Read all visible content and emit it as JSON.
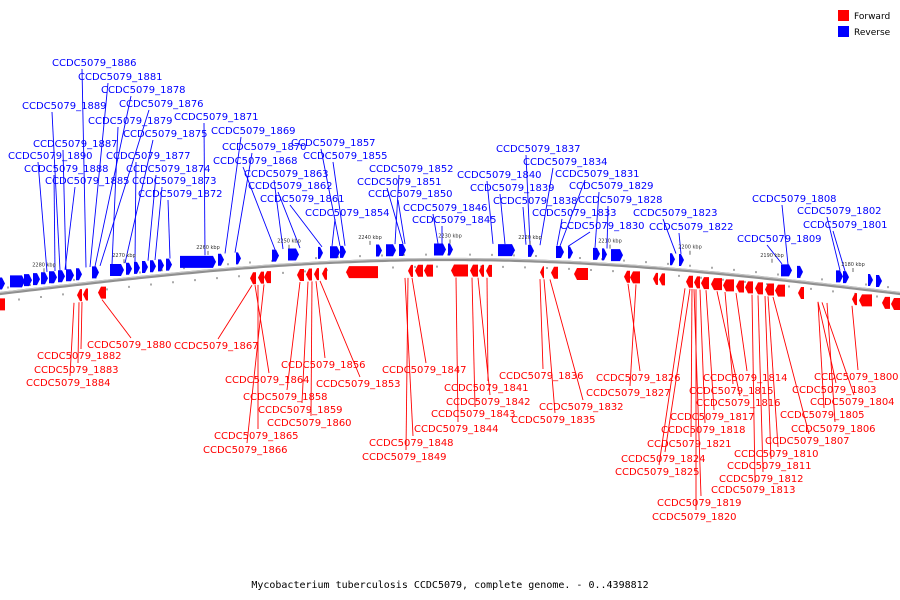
{
  "caption": "Mycobacterium tuberculosis CCDC5079, complete genome. - 0..4398812",
  "legend": [
    {
      "label": "Forward",
      "color": "#ff0000"
    },
    {
      "label": "Reverse",
      "color": "#0000ff"
    }
  ],
  "colors": {
    "forward": "#ff0000",
    "reverse": "#0000ff",
    "backbone": "#808080"
  },
  "ticks": [
    "2280 kbp",
    "2270 kbp",
    "2260 kbp",
    "2250 kbp",
    "2240 kbp",
    "2230 kbp",
    "2220 kbp",
    "2210 kbp",
    "2200 kbp",
    "2190 kbp",
    "2180 kbp"
  ],
  "reverse_labels": [
    "CCDC5079_1886",
    "CCDC5079_1881",
    "CCDC5079_1878",
    "CCDC5079_1889",
    "CCDC5079_1876",
    "CCDC5079_1879",
    "CCDC5079_1871",
    "CCDC5079_1875",
    "CCDC5079_1869",
    "CCDC5079_1887",
    "CCDC5079_1870",
    "CCDC5079_1857",
    "CCDC5079_1890",
    "CCDC5079_1877",
    "CCDC5079_1868",
    "CCDC5079_1855",
    "CCDC5079_1888",
    "CCDC5079_1874",
    "CCDC5079_1863",
    "CCDC5079_1852",
    "CCDC5079_1885",
    "CCDC5079_1873",
    "CCDC5079_1862",
    "CCDC5079_1851",
    "CCDC5079_1872",
    "CCDC5079_1850",
    "CCDC5079_1861",
    "CCDC5079_1854",
    "CCDC5079_1837",
    "CCDC5079_1834",
    "CCDC5079_1840",
    "CCDC5079_1831",
    "CCDC5079_1839",
    "CCDC5079_1829",
    "CCDC5079_1846",
    "CCDC5079_1838",
    "CCDC5079_1828",
    "CCDC5079_1845",
    "CCDC5079_1833",
    "CCDC5079_1823",
    "CCDC5079_1830",
    "CCDC5079_1822",
    "CCDC5079_1808",
    "CCDC5079_1802",
    "CCDC5079_1801",
    "CCDC5079_1809"
  ],
  "forward_labels": [
    "CCDC5079_1880",
    "CCDC5079_1867",
    "CCDC5079_1882",
    "CCDC5079_1883",
    "CCDC5079_1884",
    "CCDC5079_1856",
    "CCDC5079_1864",
    "CCDC5079_1853",
    "CCDC5079_1858",
    "CCDC5079_1859",
    "CCDC5079_1860",
    "CCDC5079_1865",
    "CCDC5079_1866",
    "CCDC5079_1847",
    "CCDC5079_1841",
    "CCDC5079_1842",
    "CCDC5079_1843",
    "CCDC5079_1844",
    "CCDC5079_1848",
    "CCDC5079_1849",
    "CCDC5079_1836",
    "CCDC5079_1832",
    "CCDC5079_1835",
    "CCDC5079_1826",
    "CCDC5079_1827",
    "CCDC5079_1814",
    "CCDC5079_1815",
    "CCDC5079_1816",
    "CCDC5079_1817",
    "CCDC5079_1818",
    "CCDC5079_1821",
    "CCDC5079_1824",
    "CCDC5079_1825",
    "CCDC5079_1819",
    "CCDC5079_1820",
    "CCDC5079_1800",
    "CCDC5079_1803",
    "CCDC5079_1804",
    "CCDC5079_1805",
    "CCDC5079_1806",
    "CCDC5079_1807",
    "CCDC5079_1810",
    "CCDC5079_1811",
    "CCDC5079_1812",
    "CCDC5079_1813"
  ]
}
